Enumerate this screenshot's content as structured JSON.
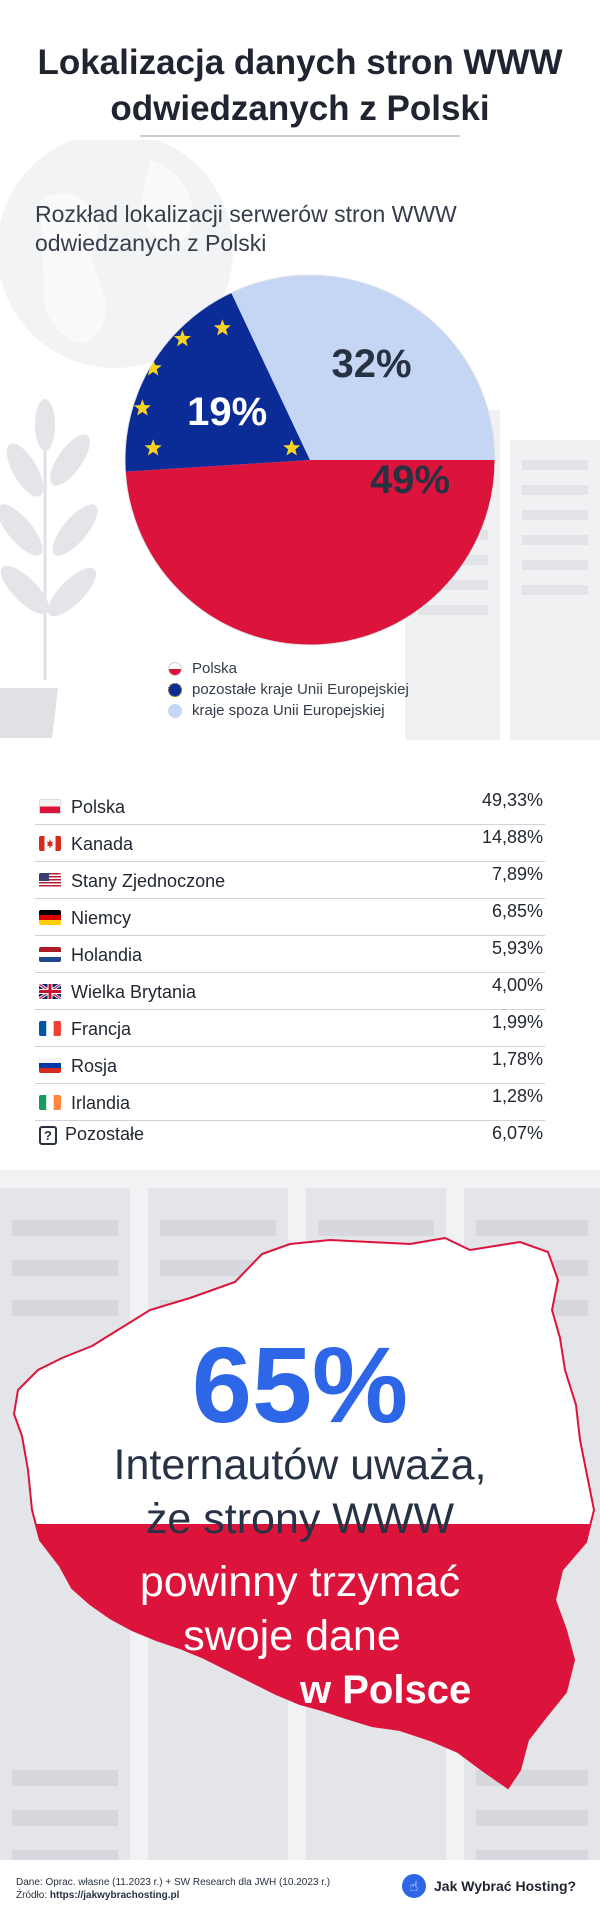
{
  "header": {
    "title_line1": "Lokalizacja danych stron WWW",
    "title_line2": "odwiedzanych z Polski"
  },
  "chart_data": {
    "type": "pie",
    "title_line1": "Rozkład lokalizacji serwerów stron WWW",
    "title_line2": "odwiedzanych z Polski",
    "slices": [
      {
        "name": "Polska",
        "value": 49,
        "label": "49%",
        "color": "#dc143c"
      },
      {
        "name": "pozostałe kraje Unii Europejskiej",
        "value": 19,
        "label": "19%",
        "color": "#0b2b97"
      },
      {
        "name": "kraje spoza Unii Europejskiej",
        "value": 32,
        "label": "32%",
        "color": "#c4d6f3"
      }
    ],
    "legend_position": "bottom-left"
  },
  "table": {
    "rows": [
      {
        "flag": "pl-flag-icon",
        "country": "Polska",
        "value": "49,33%"
      },
      {
        "flag": "ca-flag-icon",
        "country": "Kanada",
        "value": "14,88%"
      },
      {
        "flag": "us-flag-icon",
        "country": "Stany Zjednoczone",
        "value": "7,89%"
      },
      {
        "flag": "de-flag-icon",
        "country": "Niemcy",
        "value": "6,85%"
      },
      {
        "flag": "nl-flag-icon",
        "country": "Holandia",
        "value": "5,93%"
      },
      {
        "flag": "gb-flag-icon",
        "country": "Wielka Brytania",
        "value": "4,00%"
      },
      {
        "flag": "fr-flag-icon",
        "country": "Francja",
        "value": "1,99%"
      },
      {
        "flag": "ru-flag-icon",
        "country": "Rosja",
        "value": "1,78%"
      },
      {
        "flag": "ie-flag-icon",
        "country": "Irlandia",
        "value": "1,28%"
      },
      {
        "flag": "question-icon",
        "country": "Pozostałe",
        "value": "6,07%"
      }
    ],
    "question_mark": "?"
  },
  "callout": {
    "percent": "65%",
    "line1": "Internautów uważa,",
    "line2": "że strony WWW",
    "line3": "powinny trzymać",
    "line4": "swoje dane",
    "line5": "w Polsce"
  },
  "footer": {
    "data_source": "Dane: Oprac. własne (11.2023 r.) + SW Research dla JWH (10.2023 r.)",
    "origin_label": "Źródło:",
    "origin_url": "https://jakwybrachosting.pl",
    "brand_name": "Jak Wybrać Hosting?"
  },
  "colors": {
    "title": "#1f2430",
    "accent_blue": "#2d67e8",
    "polish_red": "#dc143c",
    "eu_blue": "#0b2b97",
    "non_eu_blue": "#c4d6f3"
  }
}
